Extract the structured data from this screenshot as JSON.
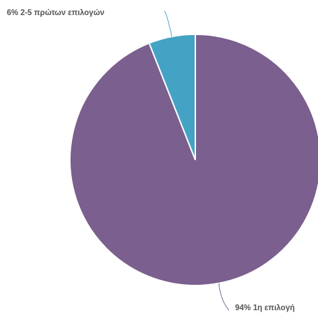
{
  "chart_data": {
    "type": "pie",
    "slices": [
      {
        "label": "1η επιλογή",
        "value": 94,
        "color": "#7B5F8E",
        "data_label": "94% 1η επιλογή"
      },
      {
        "label": "2-5 πρώτων επιλογών",
        "value": 6,
        "color": "#44A3C4",
        "data_label": "6% 2-5 πρώτων επιλογών"
      }
    ],
    "start_angle_deg": 0,
    "direction": "clockwise",
    "legend": "none"
  }
}
